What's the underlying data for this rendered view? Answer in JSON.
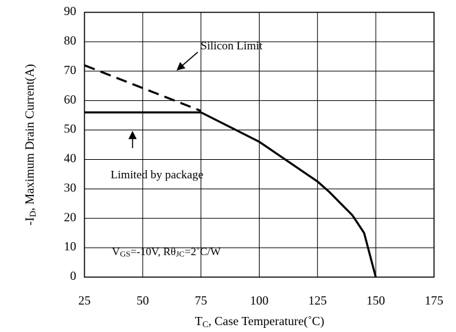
{
  "chart_data": {
    "type": "line",
    "ylabel": [
      "-I",
      "D",
      ", Maximum Drain Current(A)"
    ],
    "xlabel": [
      "T",
      "C",
      ", Case Temperature(˚C)"
    ],
    "annotation": [
      "V",
      "GS",
      "=-10V, Rθ",
      "JC",
      "=2˚C/W"
    ],
    "series": [
      {
        "name": "Silicon Limit",
        "color": "#000000",
        "style": "dashed",
        "x": [
          25,
          75
        ],
        "values": [
          72,
          56.5
        ]
      },
      {
        "name": "Limited by package",
        "color": "#000000",
        "style": "solid",
        "x": [
          25,
          75,
          100,
          125,
          130,
          135,
          140,
          145,
          150
        ],
        "values": [
          56,
          56,
          46,
          32.5,
          29,
          25,
          21,
          15,
          0
        ]
      }
    ],
    "xlim": [
      25,
      175
    ],
    "xticks": [
      25,
      50,
      75,
      100,
      125,
      150,
      175
    ],
    "ylim": [
      0,
      90
    ],
    "yticks": [
      0,
      10,
      20,
      30,
      40,
      50,
      60,
      70,
      80,
      90
    ],
    "grid": true
  }
}
